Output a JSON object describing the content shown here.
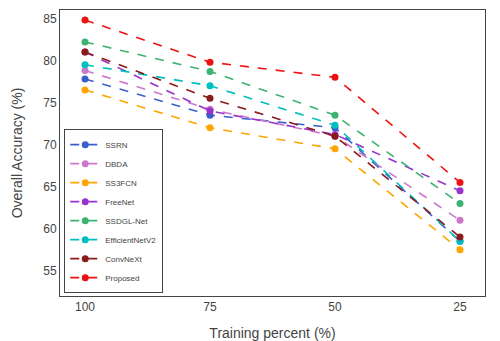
{
  "chart_data": {
    "type": "line",
    "xlabel": "Training percent (%)",
    "ylabel": "Overall Accuracy (%)",
    "x": [
      100,
      75,
      50,
      25
    ],
    "series": [
      {
        "name": "SSRN",
        "color": "#3a5fcd",
        "values": [
          77.8,
          73.5,
          72.0,
          58.5
        ]
      },
      {
        "name": "DBDA",
        "color": "#cc77cc",
        "values": [
          78.8,
          74.2,
          71.0,
          61.0
        ]
      },
      {
        "name": "SS3FCN",
        "color": "#ffa500",
        "values": [
          76.5,
          72.0,
          69.5,
          57.5
        ]
      },
      {
        "name": "FreeNet",
        "color": "#9932cc",
        "values": [
          81.0,
          74.0,
          71.2,
          64.5
        ]
      },
      {
        "name": "SSDGL-Net",
        "color": "#3cb371",
        "values": [
          82.2,
          78.7,
          73.5,
          63.0
        ]
      },
      {
        "name": "EfficientNetV2",
        "color": "#00bfbf",
        "values": [
          79.5,
          77.0,
          72.3,
          58.5
        ]
      },
      {
        "name": "ConvNeXt",
        "color": "#8b1a1a",
        "values": [
          81.0,
          75.5,
          71.0,
          59.0
        ]
      },
      {
        "name": "Proposed",
        "color": "#ee1111",
        "values": [
          84.8,
          79.8,
          78.0,
          65.5
        ]
      }
    ],
    "xlim": [
      105,
      20
    ],
    "xticks": [
      100,
      75,
      50,
      25
    ],
    "ylim": [
      52,
      86
    ],
    "yticks": [
      55,
      60,
      65,
      70,
      75,
      80,
      85
    ],
    "marker": "circle",
    "line_style": "dashed",
    "legend": "lower left",
    "grid": false
  }
}
